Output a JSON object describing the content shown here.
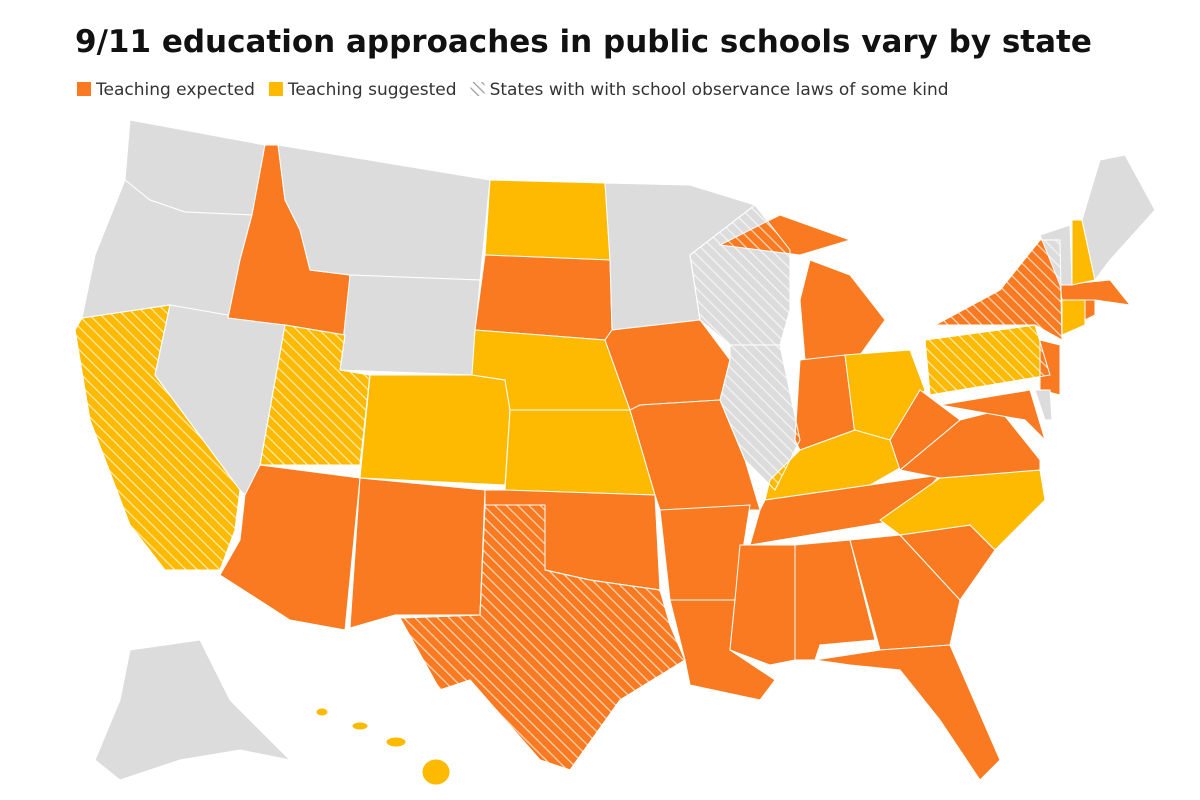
{
  "title": "9/11 education approaches in public schools vary by state",
  "legend": [
    {
      "label": "Teaching expected",
      "color": "#f97a20"
    },
    {
      "label": "Teaching suggested",
      "color": "#fdba00"
    },
    {
      "label": "States with with school observance laws of some kind",
      "pattern": "hatch",
      "color": "#9a9a9a"
    }
  ],
  "other_color": "#dcdcdc"
}
